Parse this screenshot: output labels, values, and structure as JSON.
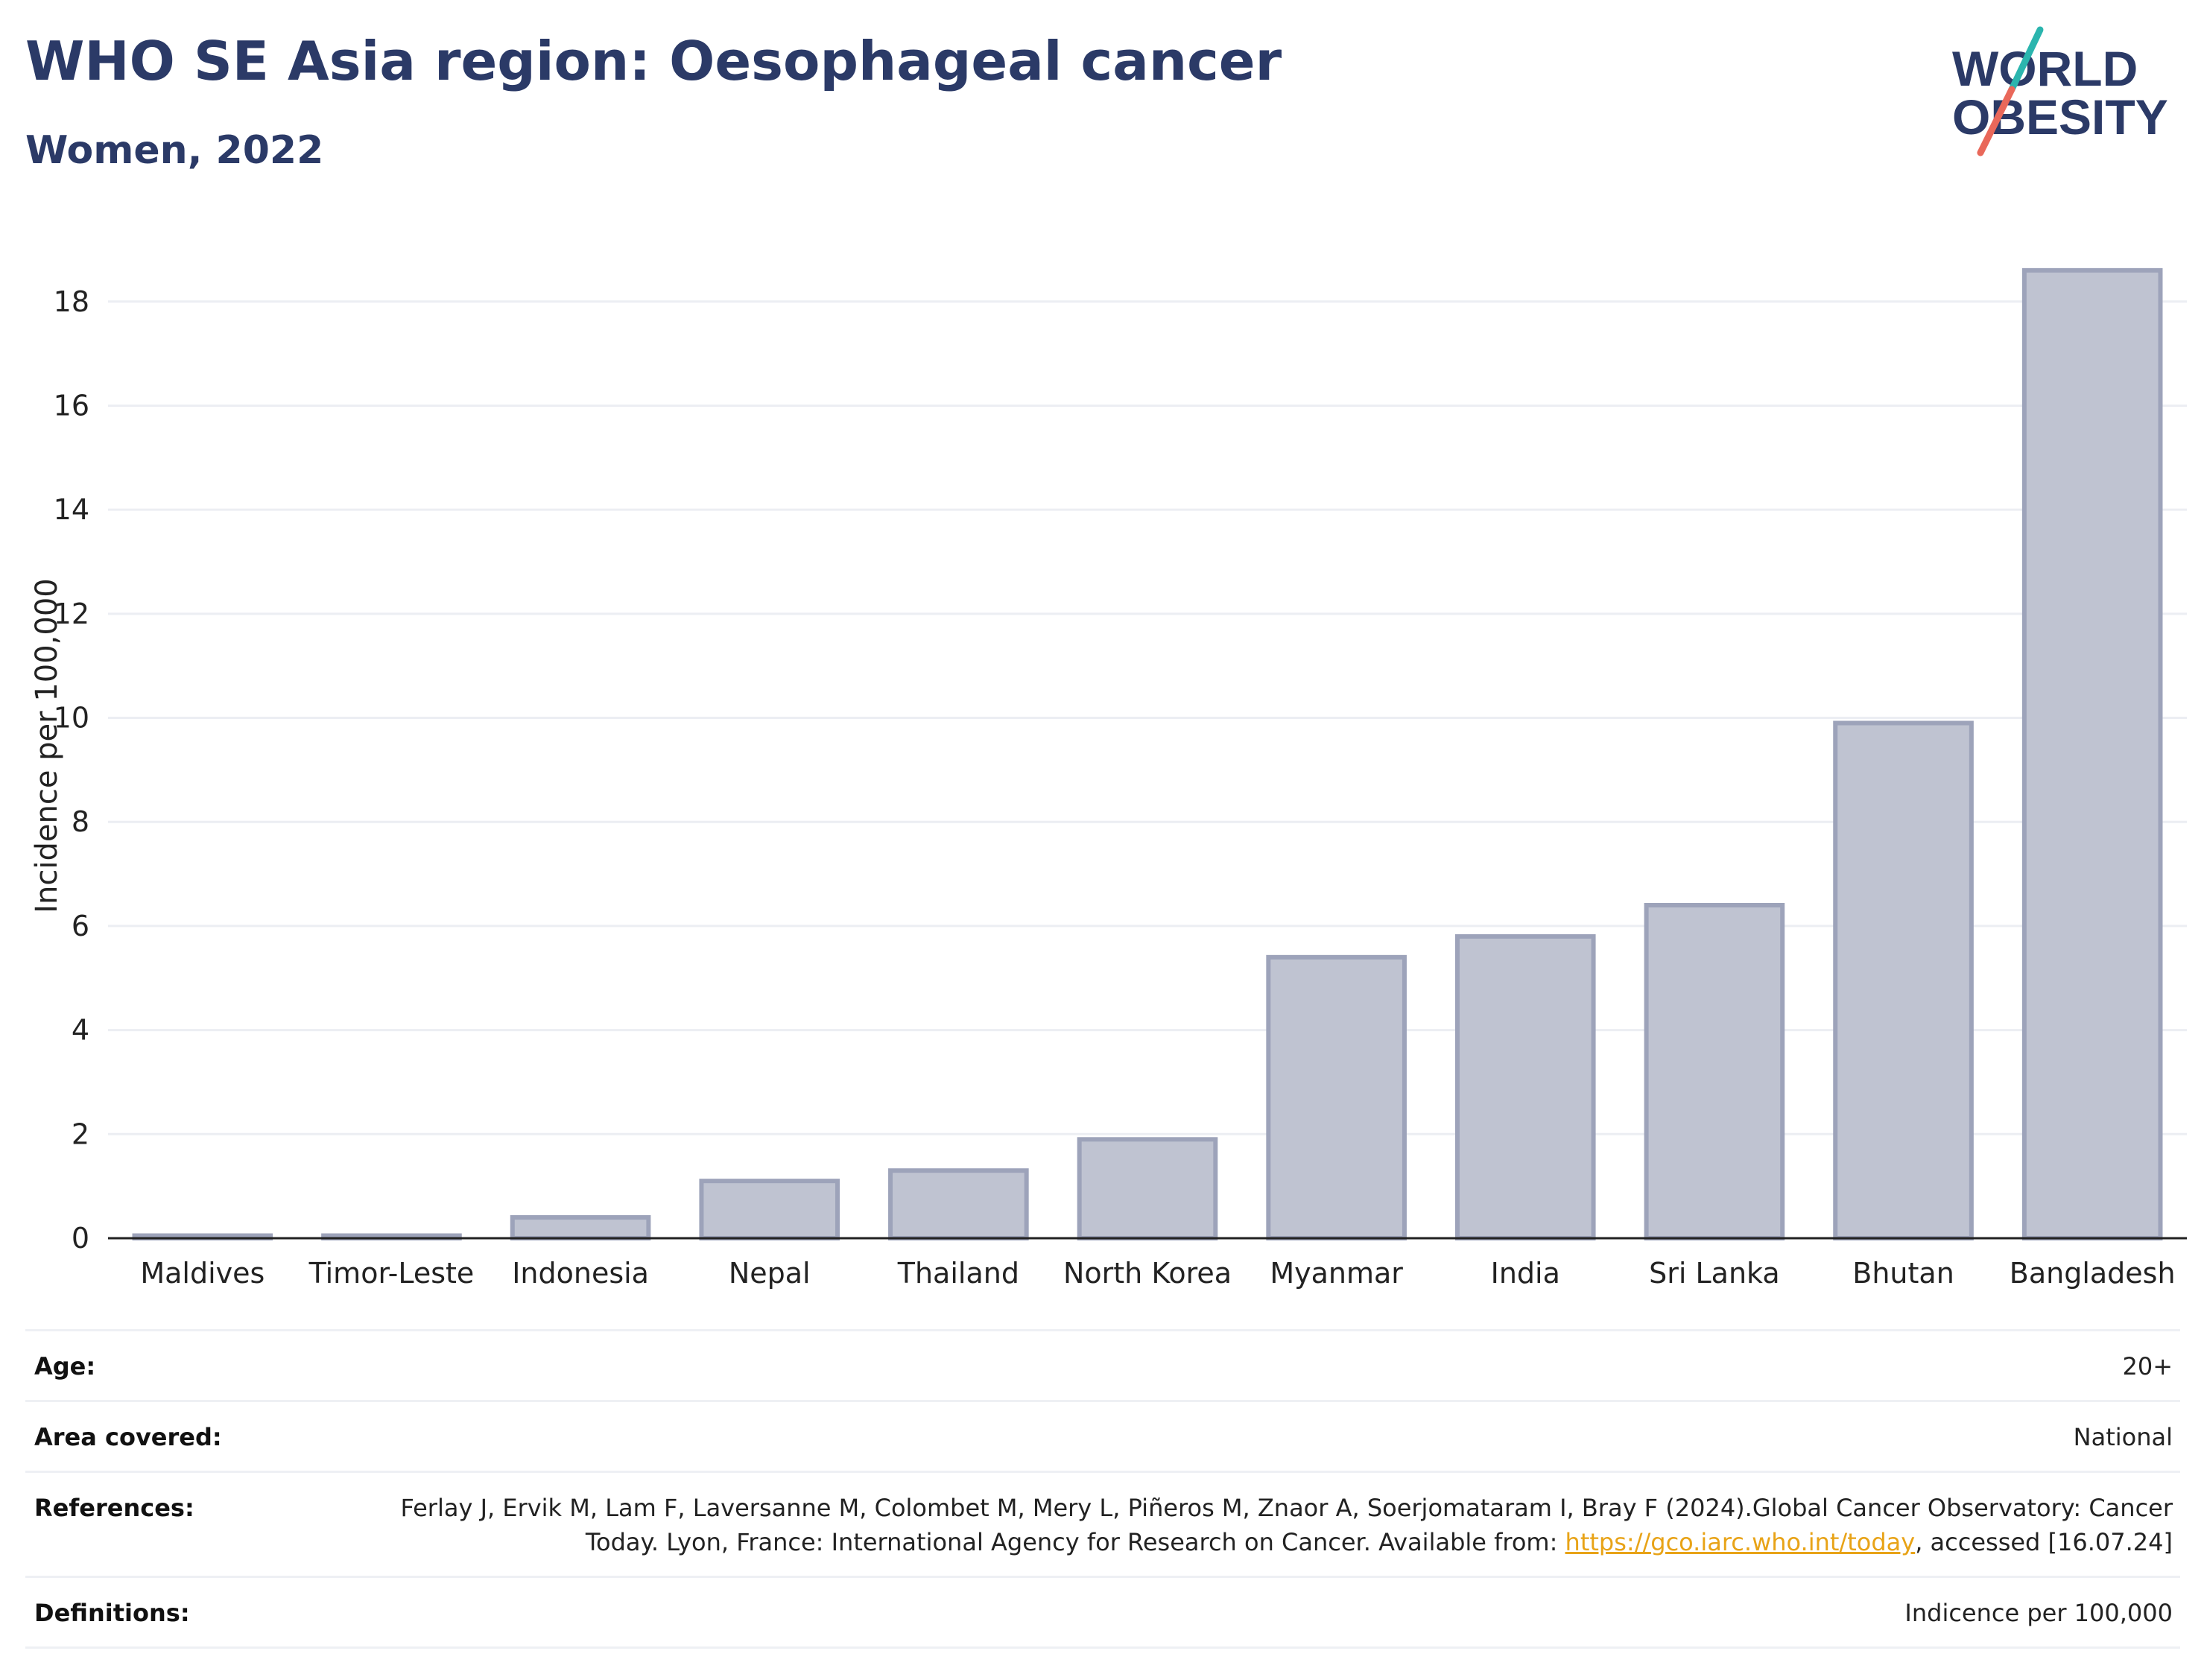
{
  "header": {
    "title": "WHO SE Asia region: Oesophageal cancer",
    "subtitle": "Women, 2022"
  },
  "logo": {
    "line1": "WORLD",
    "line2": "OBESITY",
    "accent_teal": "#2bb5ae",
    "accent_coral": "#e9685a",
    "text_color": "#2b3a67"
  },
  "colors": {
    "bar_fill": "#bfc3d1",
    "bar_stroke": "#9da3ba",
    "grid": "#eceef3",
    "axis": "#222222",
    "title": "#2b3a67"
  },
  "chart_data": {
    "type": "bar",
    "categories": [
      "Maldives",
      "Timor-Leste",
      "Indonesia",
      "Nepal",
      "Thailand",
      "North Korea",
      "Myanmar",
      "India",
      "Sri Lanka",
      "Bhutan",
      "Bangladesh"
    ],
    "values": [
      0.05,
      0.05,
      0.4,
      1.1,
      1.3,
      1.9,
      5.4,
      5.8,
      6.4,
      9.9,
      18.6
    ],
    "ylabel": "Incidence per 100,000",
    "xlabel": "",
    "yticks": [
      0,
      2,
      4,
      6,
      8,
      10,
      12,
      14,
      16,
      18
    ],
    "ylim": [
      0,
      19.5
    ],
    "grid": true,
    "legend": "none"
  },
  "info": {
    "age_label": "Age:",
    "age_value": "20+",
    "area_label": "Area covered:",
    "area_value": "National",
    "references_label": "References:",
    "references_text": "Ferlay J, Ervik M, Lam F, Laversanne M, Colombet M, Mery L, Piñeros M, Znaor A, Soerjomataram I, Bray F (2024).Global Cancer Observatory: Cancer Today. Lyon, France: International Agency for Research on Cancer. Available from:",
    "references_link": "https://gco.iarc.who.int/today",
    "references_suffix": ", accessed [16.07.24]",
    "definitions_label": "Definitions:",
    "definitions_value": "Indicence per 100,000"
  }
}
